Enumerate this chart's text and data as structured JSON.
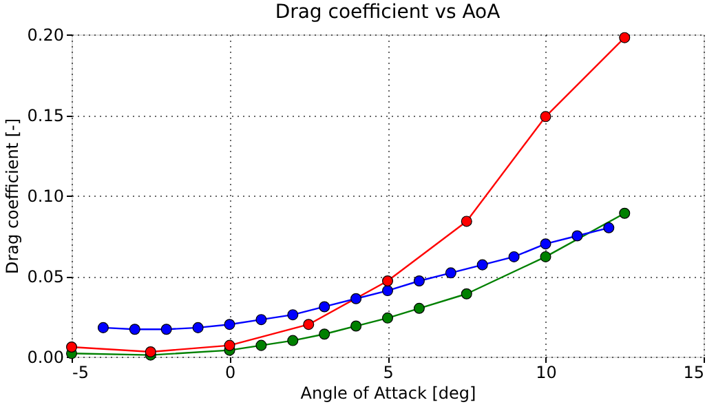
{
  "chart_data": {
    "type": "line",
    "title": "Drag coefficient vs AoA",
    "xlabel": "Angle of Attack [deg]",
    "ylabel": "Drag coefficient [-]",
    "xlim": [
      -5,
      15
    ],
    "xticks": [
      -5,
      0,
      5,
      10,
      15
    ],
    "ylim": [
      0,
      0.2
    ],
    "yticks": [
      {
        "value": 0,
        "label": "0.00"
      },
      {
        "value": 0.05,
        "label": "0.05"
      },
      {
        "value": 0.1,
        "label": "0.10"
      },
      {
        "value": 0.15,
        "label": "0.15"
      },
      {
        "value": 0.2,
        "label": "0.20"
      }
    ],
    "grid": true,
    "marker": "circle",
    "line_style": "solid",
    "series": [
      {
        "color": "#ff0000",
        "x": [
          -5,
          -2.5,
          0,
          2.5,
          5,
          7.5,
          10,
          12.5
        ],
        "values": [
          0.006,
          0.003,
          0.007,
          0.02,
          0.047,
          0.084,
          0.149,
          0.198
        ]
      },
      {
        "color": "#008000",
        "x": [
          -5,
          -2.5,
          0,
          1,
          2,
          3,
          4,
          5,
          6,
          7.5,
          10,
          12.5
        ],
        "values": [
          0.002,
          0.001,
          0.004,
          0.007,
          0.01,
          0.014,
          0.019,
          0.024,
          0.03,
          0.039,
          0.062,
          0.089
        ]
      },
      {
        "color": "#0000ff",
        "x": [
          -4,
          -3,
          -2,
          -1,
          0,
          1,
          2,
          3,
          4,
          5,
          6,
          7,
          8,
          9,
          10,
          11,
          12
        ],
        "values": [
          0.018,
          0.017,
          0.017,
          0.018,
          0.02,
          0.023,
          0.026,
          0.031,
          0.036,
          0.041,
          0.047,
          0.052,
          0.057,
          0.062,
          0.07,
          0.075,
          0.08
        ]
      }
    ]
  }
}
